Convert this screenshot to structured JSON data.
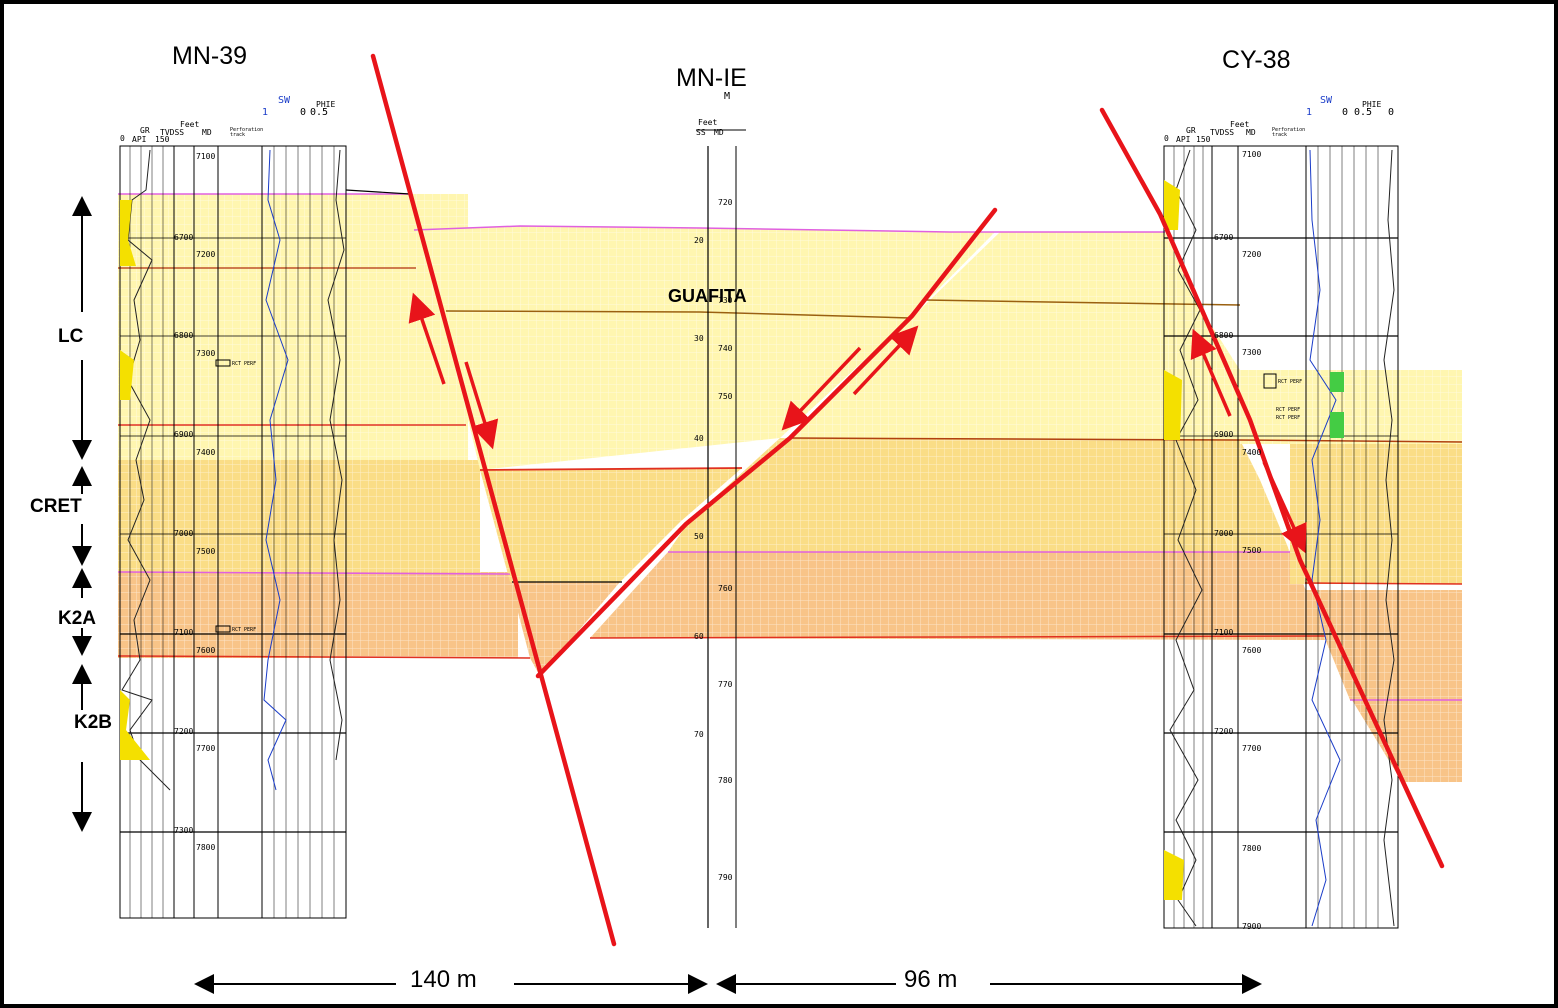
{
  "wells": {
    "left": "MN-39",
    "middle": "MN-IE",
    "middle_sub": "M",
    "right": "CY-38"
  },
  "zones": [
    "LC",
    "CRET",
    "K2A",
    "K2B"
  ],
  "formation_label": "GUAFITA",
  "distances": {
    "left": "140 m",
    "right": "96 m"
  },
  "track_headers": {
    "gr": "GR",
    "api": "API",
    "gr_scale_min": "0",
    "gr_scale_max": "150",
    "feet": "Feet",
    "tvdss": "TVDSS",
    "md": "MD",
    "sw": "SW",
    "phie": "PHIE",
    "sw_min": "1",
    "sw_max": "0",
    "phie_scale": "0.5",
    "phie_max": "0",
    "ss": "SS",
    "perf": "Perforation\ntrack"
  },
  "depth_ticks": {
    "mn39_md": [
      "7100",
      "7200",
      "7300",
      "7400",
      "7500",
      "7600",
      "7700",
      "7800"
    ],
    "mn39_tvdss": [
      "6700",
      "6800",
      "6900",
      "7000",
      "7100",
      "7200",
      "7300"
    ],
    "mne_md": [
      "720",
      "730",
      "740",
      "750",
      "760",
      "770",
      "780",
      "790"
    ],
    "mne_ss": [
      "20",
      "30",
      "40",
      "50",
      "60",
      "70"
    ],
    "cy38_md": [
      "7100",
      "7200",
      "7300",
      "7400",
      "7500",
      "7600",
      "7700",
      "7800",
      "7900"
    ],
    "cy38_tvdss": [
      "6700",
      "6800",
      "6900",
      "7000",
      "7100",
      "7200"
    ]
  },
  "annotations": {
    "perf_label": "RCT PERF"
  },
  "colors": {
    "fault": "#e8141a",
    "lc_fill": "#fff6b0",
    "cret_fill": "#fadd86",
    "k2a_fill": "#f8c488",
    "k2b_fill": "#f8c488",
    "gr_fill": "#f4e000",
    "sw_curve": "#1a3cc8",
    "marker_pink": "#e060e0",
    "marker_red": "#e03020"
  }
}
